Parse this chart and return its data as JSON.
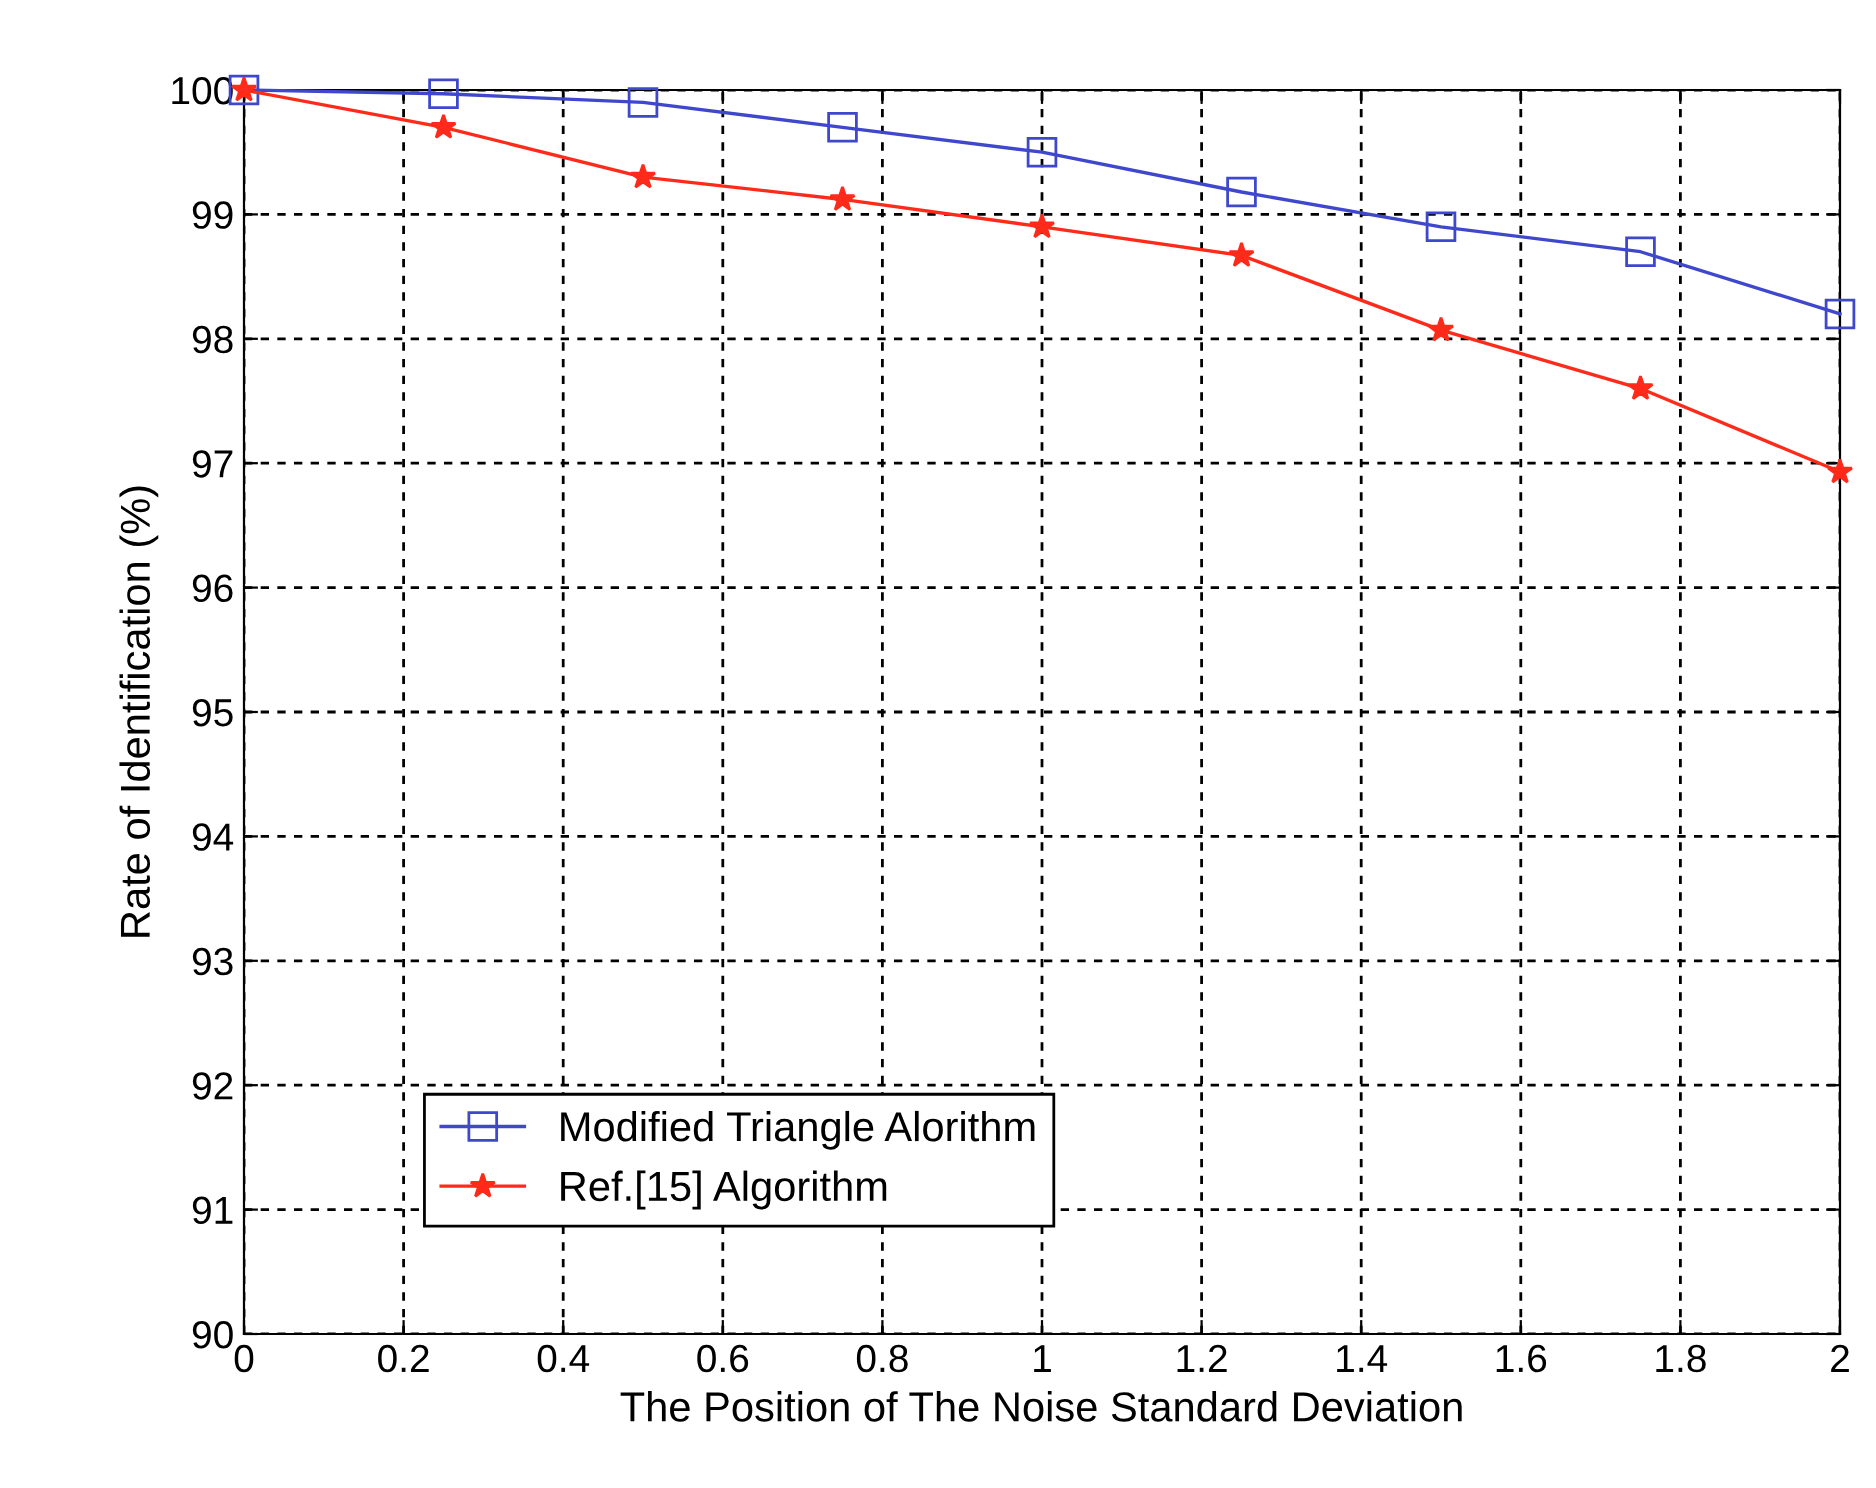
{
  "chart_data": {
    "type": "line",
    "xlabel": "The Position of The Noise Standard Deviation",
    "ylabel": "Rate of Identification (%)",
    "x": [
      0,
      0.25,
      0.5,
      0.75,
      1,
      1.25,
      1.5,
      1.75,
      2
    ],
    "series": [
      {
        "name": "Modified Triangle Alorithm",
        "color": "#3f48cc",
        "marker": "square",
        "values": [
          100,
          99.97,
          99.9,
          99.7,
          99.5,
          99.18,
          98.9,
          98.7,
          98.2
        ]
      },
      {
        "name": "Ref.[15] Algorithm",
        "color": "#ff2a1a",
        "marker": "star",
        "values": [
          100,
          99.7,
          99.3,
          99.12,
          98.9,
          98.67,
          98.07,
          97.6,
          96.93
        ]
      }
    ],
    "xlim": [
      0,
      2
    ],
    "xticks": [
      0,
      0.2,
      0.4,
      0.6,
      0.8,
      1,
      1.2,
      1.4,
      1.6,
      1.8,
      2
    ],
    "ylim": [
      90,
      100
    ],
    "yticks": [
      90,
      91,
      92,
      93,
      94,
      95,
      96,
      97,
      98,
      99,
      100
    ],
    "grid": true,
    "legend": "bottom left",
    "line_style": "solid"
  }
}
